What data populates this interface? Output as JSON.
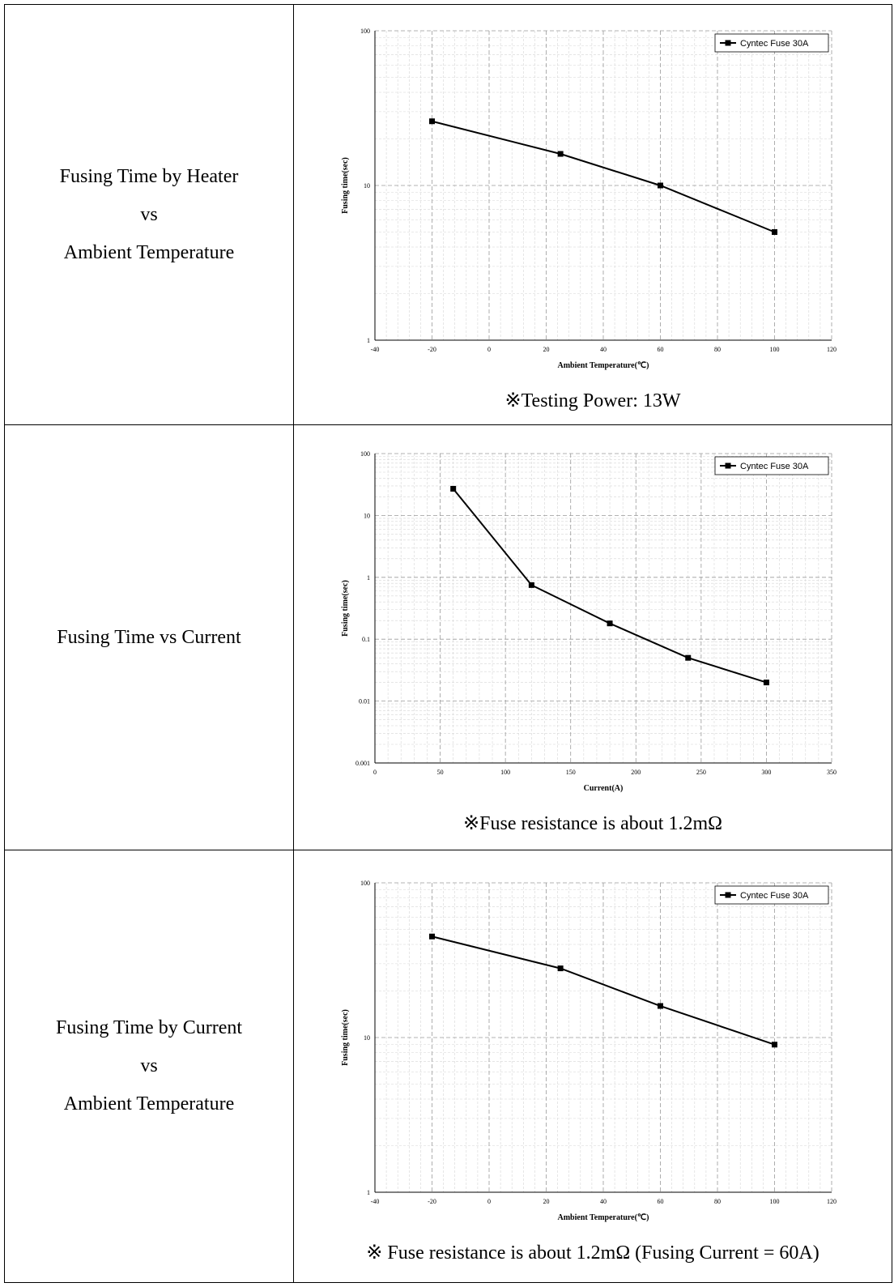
{
  "rows": [
    {
      "label": [
        "Fusing Time by Heater",
        "vs",
        "Ambient Temperature"
      ],
      "note": "※Testing Power: 13W"
    },
    {
      "label": [
        "Fusing Time vs Current"
      ],
      "note": "※Fuse resistance is about 1.2mΩ"
    },
    {
      "label": [
        "Fusing Time by Current",
        "vs",
        "Ambient Temperature"
      ],
      "note": "※ Fuse resistance is about 1.2mΩ (Fusing Current = 60A)"
    }
  ],
  "chart_data": [
    {
      "type": "line",
      "xlabel": "Ambient Temperature(℃)",
      "ylabel": "Fusing time(sec)",
      "xlim": [
        -40,
        120
      ],
      "xticks": [
        -40,
        -20,
        0,
        20,
        40,
        60,
        80,
        100,
        120
      ],
      "ylim": [
        1,
        100
      ],
      "yscale": "log",
      "yticks": [
        1,
        10,
        100
      ],
      "ytick_labels": [
        "1",
        "10",
        "100"
      ],
      "grid": true,
      "legend_position": "top-right",
      "series": [
        {
          "name": "Cyntec Fuse 30A",
          "x": [
            -20,
            25,
            60,
            100
          ],
          "y": [
            26,
            16,
            10,
            5
          ]
        }
      ]
    },
    {
      "type": "line",
      "xlabel": "Current(A)",
      "ylabel": "Fusing time(sec)",
      "xlim": [
        0,
        350
      ],
      "xticks": [
        0,
        50,
        100,
        150,
        200,
        250,
        300,
        350
      ],
      "ylim": [
        0.001,
        100
      ],
      "yscale": "log",
      "yticks": [
        0.001,
        0.01,
        0.1,
        1,
        10,
        100
      ],
      "ytick_labels": [
        "0.001",
        "0.01",
        "0.1",
        "1",
        "10",
        "100"
      ],
      "grid": true,
      "legend_position": "top-right",
      "series": [
        {
          "name": "Cyntec Fuse 30A",
          "x": [
            60,
            120,
            180,
            240,
            300
          ],
          "y": [
            27,
            0.75,
            0.18,
            0.05,
            0.02
          ]
        }
      ]
    },
    {
      "type": "line",
      "xlabel": "Ambient Temperature(℃)",
      "ylabel": "Fusing time(sec)",
      "xlim": [
        -40,
        120
      ],
      "xticks": [
        -40,
        -20,
        0,
        20,
        40,
        60,
        80,
        100,
        120
      ],
      "ylim": [
        1,
        100
      ],
      "yscale": "log",
      "yticks": [
        1,
        10,
        100
      ],
      "ytick_labels": [
        "1",
        "10",
        "100"
      ],
      "grid": true,
      "legend_position": "top-right",
      "series": [
        {
          "name": "Cyntec Fuse 30A",
          "x": [
            -20,
            25,
            60,
            100
          ],
          "y": [
            45,
            28,
            16,
            9
          ]
        }
      ]
    }
  ]
}
